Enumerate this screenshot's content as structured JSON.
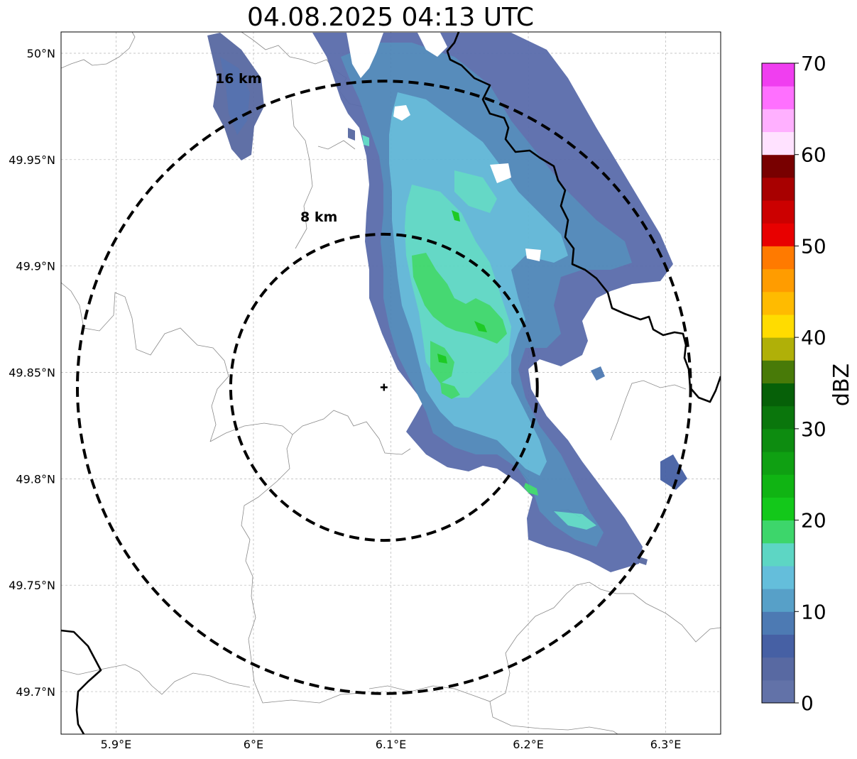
{
  "title": "04.08.2025 04:13 UTC",
  "map": {
    "lon_range": [
      5.86,
      6.34
    ],
    "lat_range": [
      49.68,
      50.01
    ],
    "lon_ticks": [
      {
        "value": 5.9,
        "label": "5.9°E"
      },
      {
        "value": 6.0,
        "label": "6°E"
      },
      {
        "value": 6.1,
        "label": "6.1°E"
      },
      {
        "value": 6.2,
        "label": "6.2°E"
      },
      {
        "value": 6.3,
        "label": "6.3°E"
      }
    ],
    "lat_ticks": [
      {
        "value": 49.7,
        "label": "49.7°N"
      },
      {
        "value": 49.75,
        "label": "49.75°N"
      },
      {
        "value": 49.8,
        "label": "49.8°N"
      },
      {
        "value": 49.85,
        "label": "49.85°N"
      },
      {
        "value": 49.9,
        "label": "49.9°N"
      },
      {
        "value": 49.95,
        "label": "49.95°N"
      },
      {
        "value": 50.0,
        "label": "50°N"
      }
    ],
    "grid": true,
    "radar_site": {
      "lon": 6.095,
      "lat": 49.843
    },
    "range_rings": [
      {
        "radius_km": 8,
        "label": "8 km"
      },
      {
        "radius_km": 16,
        "label": "16 km"
      }
    ]
  },
  "colorbar": {
    "label": "dBZ",
    "min": 0,
    "max": 70,
    "step": 2.5,
    "tick_labels": [
      "0",
      "10",
      "20",
      "30",
      "40",
      "50",
      "60",
      "70"
    ],
    "colors": [
      "#6272a8",
      "#5869a2",
      "#4660a4",
      "#4d7ab3",
      "#57a0c8",
      "#64bedb",
      "#5dd6c4",
      "#3dd66b",
      "#13c81a",
      "#10b413",
      "#0fa012",
      "#0d8c10",
      "#0a760c",
      "#066008",
      "#487a08",
      "#b0b008",
      "#ffdc00",
      "#ffbb00",
      "#ff9c00",
      "#ff7a00",
      "#e80000",
      "#cc0000",
      "#a80000",
      "#780000",
      "#ffe2ff",
      "#ffb0ff",
      "#ff70ff",
      "#f03ef0"
    ]
  },
  "echo_field": {
    "description_colors": {
      "weak": "#4d6bab",
      "moderate": "#64bedb",
      "strong": "#3dd66b",
      "peak": "#13c81a"
    }
  }
}
